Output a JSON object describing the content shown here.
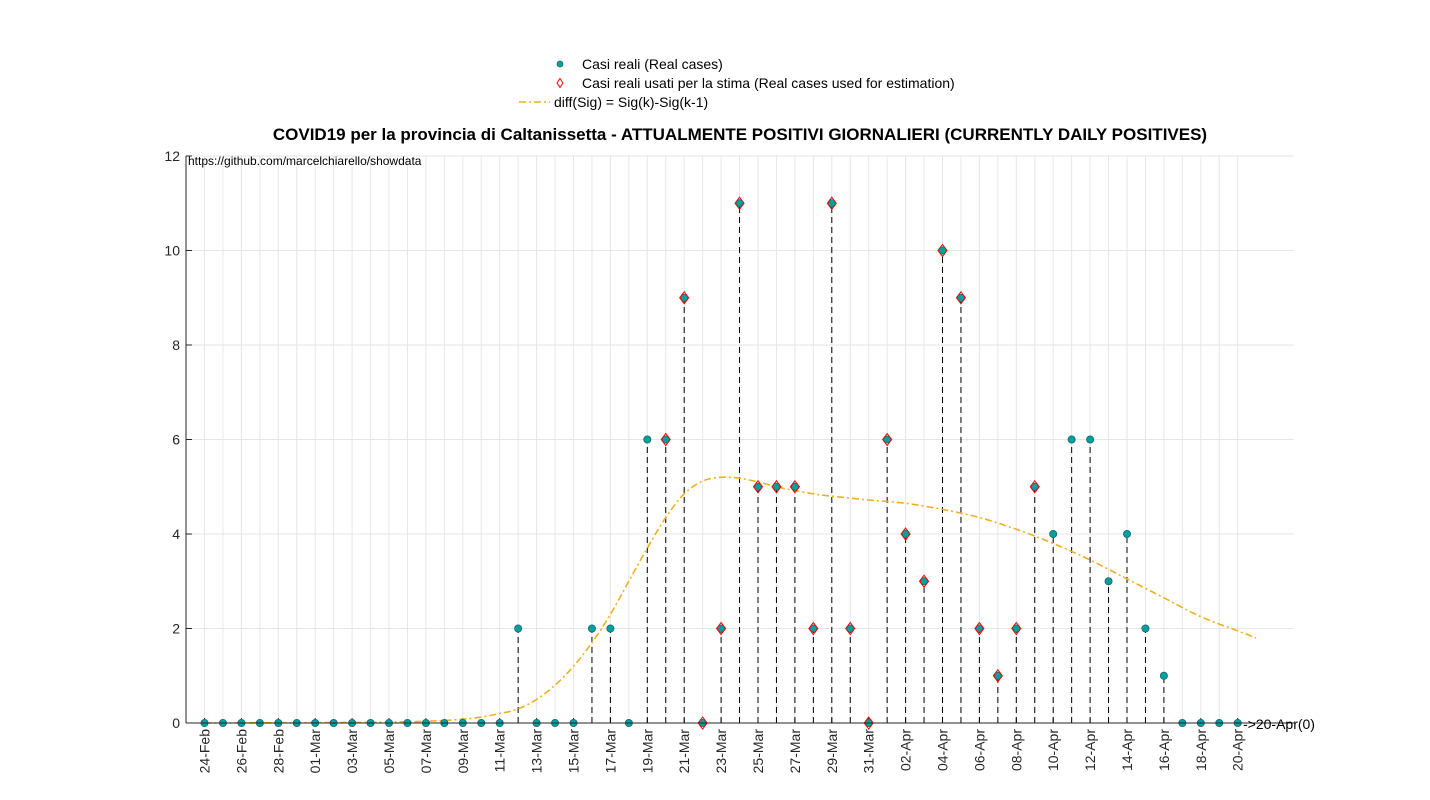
{
  "chart_data": {
    "type": "scatter",
    "title": "COVID19 per la provincia di Caltanissetta - ATTUALMENTE POSITIVI GIORNALIERI (CURRENTLY DAILY POSITIVES)",
    "source_note": "https://github.com/marcelchiarello/showdata",
    "end_annotation": "->20-Apr(0)",
    "xlabel": "",
    "ylabel": "",
    "ylim": [
      0,
      12
    ],
    "yticks": [
      "0",
      "2",
      "4",
      "6",
      "8",
      "10",
      "12"
    ],
    "xticks": [
      "24-Feb",
      "26-Feb",
      "28-Feb",
      "01-Mar",
      "03-Mar",
      "05-Mar",
      "07-Mar",
      "09-Mar",
      "11-Mar",
      "13-Mar",
      "15-Mar",
      "17-Mar",
      "19-Mar",
      "21-Mar",
      "23-Mar",
      "25-Mar",
      "27-Mar",
      "29-Mar",
      "31-Mar",
      "02-Apr",
      "04-Apr",
      "06-Apr",
      "08-Apr",
      "10-Apr",
      "12-Apr",
      "14-Apr",
      "16-Apr",
      "18-Apr",
      "20-Apr"
    ],
    "grid": true,
    "legend_position": "top-center",
    "dates": [
      "24-Feb",
      "25-Feb",
      "26-Feb",
      "27-Feb",
      "28-Feb",
      "29-Feb",
      "01-Mar",
      "02-Mar",
      "03-Mar",
      "04-Mar",
      "05-Mar",
      "06-Mar",
      "07-Mar",
      "08-Mar",
      "09-Mar",
      "10-Mar",
      "11-Mar",
      "12-Mar",
      "13-Mar",
      "14-Mar",
      "15-Mar",
      "16-Mar",
      "17-Mar",
      "18-Mar",
      "19-Mar",
      "20-Mar",
      "21-Mar",
      "22-Mar",
      "23-Mar",
      "24-Mar",
      "25-Mar",
      "26-Mar",
      "27-Mar",
      "28-Mar",
      "29-Mar",
      "30-Mar",
      "31-Mar",
      "01-Apr",
      "02-Apr",
      "03-Apr",
      "04-Apr",
      "05-Apr",
      "06-Apr",
      "07-Apr",
      "08-Apr",
      "09-Apr",
      "10-Apr",
      "11-Apr",
      "12-Apr",
      "13-Apr",
      "14-Apr",
      "15-Apr",
      "16-Apr",
      "17-Apr",
      "18-Apr",
      "19-Apr",
      "20-Apr"
    ],
    "series": [
      {
        "name": "Casi reali (Real cases)",
        "marker": "circle",
        "values": [
          0,
          0,
          0,
          0,
          0,
          0,
          0,
          0,
          0,
          0,
          0,
          0,
          0,
          0,
          0,
          0,
          0,
          2,
          0,
          0,
          0,
          2,
          2,
          0,
          6,
          6,
          9,
          0,
          2,
          11,
          5,
          5,
          5,
          2,
          11,
          2,
          0,
          6,
          4,
          3,
          10,
          9,
          2,
          1,
          2,
          5,
          4,
          6,
          6,
          3,
          4,
          2,
          1,
          0,
          0,
          0,
          0
        ]
      },
      {
        "name": "Casi reali usati per la stima (Real cases used for estimation)",
        "marker": "diamond",
        "dates": [
          "20-Mar",
          "21-Mar",
          "22-Mar",
          "23-Mar",
          "24-Mar",
          "25-Mar",
          "26-Mar",
          "27-Mar",
          "28-Mar",
          "29-Mar",
          "30-Mar",
          "31-Mar",
          "01-Apr",
          "02-Apr",
          "03-Apr",
          "04-Apr",
          "05-Apr",
          "06-Apr",
          "07-Apr",
          "08-Apr",
          "09-Apr"
        ],
        "values": [
          6,
          9,
          0,
          2,
          11,
          5,
          5,
          5,
          2,
          11,
          2,
          0,
          6,
          4,
          3,
          10,
          9,
          2,
          1,
          2,
          5
        ]
      },
      {
        "name": "diff(Sig) = Sig(k)-Sig(k-1)",
        "line_style": "dash-dot",
        "x": [
          "24-Feb",
          "05-Mar",
          "09-Mar",
          "11-Mar",
          "12-Mar",
          "13-Mar",
          "14-Mar",
          "15-Mar",
          "16-Mar",
          "17-Mar",
          "18-Mar",
          "19-Mar",
          "20-Mar",
          "21-Mar",
          "22-Mar",
          "23-Mar",
          "24-Mar",
          "25-Mar",
          "26-Mar",
          "27-Mar",
          "28-Mar",
          "29-Mar",
          "31-Mar",
          "02-Apr",
          "04-Apr",
          "06-Apr",
          "08-Apr",
          "10-Apr",
          "12-Apr",
          "14-Apr",
          "16-Apr",
          "18-Apr",
          "20-Apr",
          "21-Apr"
        ],
        "values": [
          0,
          0.02,
          0.08,
          0.2,
          0.3,
          0.5,
          0.8,
          1.2,
          1.7,
          2.3,
          3.0,
          3.7,
          4.35,
          4.85,
          5.12,
          5.2,
          5.18,
          5.1,
          5.0,
          4.92,
          4.85,
          4.8,
          4.72,
          4.65,
          4.52,
          4.35,
          4.1,
          3.8,
          3.45,
          3.05,
          2.65,
          2.25,
          1.95,
          1.8
        ]
      }
    ],
    "colors": {
      "real_cases_fill": "#00a0a0",
      "real_cases_edge": "#1a6a6a",
      "estimation_marker": "#ff0000",
      "fit_line": "#edb120",
      "stem": "#000000",
      "grid": "#e6e6e6",
      "axis": "#262626"
    }
  }
}
